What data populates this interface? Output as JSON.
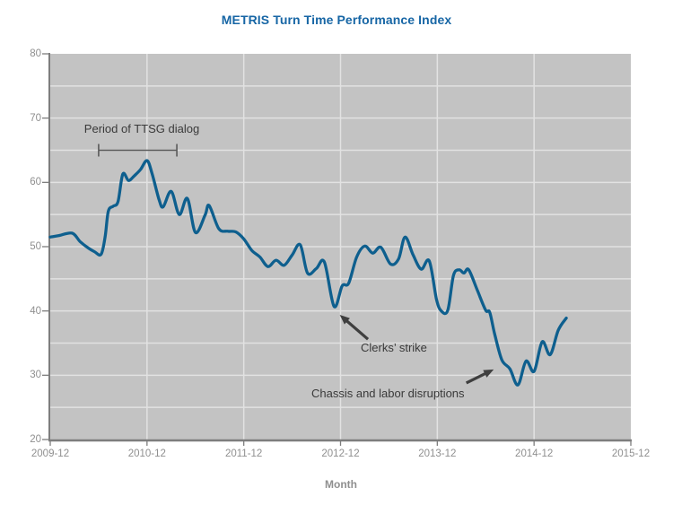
{
  "chart_data": {
    "type": "line",
    "title": "METRIS Turn Time Performance Index",
    "xlabel": "Month",
    "ylabel": "",
    "ylim": [
      20,
      80
    ],
    "x_range_months": [
      0,
      72
    ],
    "grid": true,
    "y_major_ticks": [
      20,
      30,
      40,
      50,
      60,
      70,
      80
    ],
    "y_grid_step": 5,
    "x_ticks": [
      {
        "month": 0,
        "label": "2009-12"
      },
      {
        "month": 12,
        "label": "2010-12"
      },
      {
        "month": 24,
        "label": "2011-12"
      },
      {
        "month": 36,
        "label": "2012-12"
      },
      {
        "month": 48,
        "label": "2013-12"
      },
      {
        "month": 60,
        "label": "2014-12"
      },
      {
        "month": 72,
        "label": "2015-12"
      }
    ],
    "series": [
      {
        "name": "METRIS Turn Time Performance Index",
        "points": [
          [
            0,
            51.5
          ],
          [
            1,
            51.7
          ],
          [
            2.7,
            52.1
          ],
          [
            3.7,
            50.8
          ],
          [
            4.7,
            49.8
          ],
          [
            5.5,
            49.2
          ],
          [
            6.3,
            48.8
          ],
          [
            6.8,
            51.5
          ],
          [
            7.2,
            55.5
          ],
          [
            7.8,
            56.3
          ],
          [
            8.4,
            57.0
          ],
          [
            9.0,
            61.3
          ],
          [
            9.7,
            60.3
          ],
          [
            10.4,
            61.0
          ],
          [
            11.2,
            62.0
          ],
          [
            12,
            63.4
          ],
          [
            12.6,
            61.5
          ],
          [
            13.5,
            57.3
          ],
          [
            14,
            56.2
          ],
          [
            15,
            58.6
          ],
          [
            16,
            55.0
          ],
          [
            17,
            57.5
          ],
          [
            18,
            52.2
          ],
          [
            19.2,
            54.9
          ],
          [
            19.7,
            56.4
          ],
          [
            20.9,
            52.8
          ],
          [
            22,
            52.4
          ],
          [
            23,
            52.3
          ],
          [
            24,
            51.2
          ],
          [
            25,
            49.4
          ],
          [
            26,
            48.4
          ],
          [
            27,
            46.9
          ],
          [
            28,
            47.9
          ],
          [
            29,
            47.1
          ],
          [
            30,
            48.7
          ],
          [
            31,
            50.3
          ],
          [
            31.9,
            45.9
          ],
          [
            33,
            46.6
          ],
          [
            34,
            47.6
          ],
          [
            35.2,
            40.7
          ],
          [
            36.2,
            43.9
          ],
          [
            37,
            44.3
          ],
          [
            38,
            48.4
          ],
          [
            39,
            50.1
          ],
          [
            40,
            49.0
          ],
          [
            41,
            49.9
          ],
          [
            42.2,
            47.3
          ],
          [
            43.2,
            48.1
          ],
          [
            44,
            51.5
          ],
          [
            45,
            48.7
          ],
          [
            46,
            46.5
          ],
          [
            47,
            47.8
          ],
          [
            47.9,
            41.8
          ],
          [
            48.5,
            40.0
          ],
          [
            49.3,
            40.1
          ],
          [
            50,
            45.5
          ],
          [
            50.7,
            46.4
          ],
          [
            51.3,
            45.9
          ],
          [
            51.9,
            46.4
          ],
          [
            53,
            43.1
          ],
          [
            54,
            40.1
          ],
          [
            54.5,
            39.8
          ],
          [
            55.1,
            36.5
          ],
          [
            56,
            32.4
          ],
          [
            57,
            31.0
          ],
          [
            58,
            28.5
          ],
          [
            59,
            32.2
          ],
          [
            60,
            30.6
          ],
          [
            61,
            35.2
          ],
          [
            62,
            33.2
          ],
          [
            63,
            37.0
          ],
          [
            64,
            38.9
          ]
        ]
      }
    ],
    "annotations": [
      {
        "id": "ttsg-dialog",
        "type": "bracket",
        "label": "Period of TTSG dialog",
        "x_from_month": 6.0,
        "x_to_month": 15.7,
        "value": 65.0
      },
      {
        "id": "clerks-strike",
        "type": "arrow",
        "label": "Clerks’ strike",
        "tail": [
          39.4,
          35.6
        ],
        "tip": [
          35.9,
          39.4
        ]
      },
      {
        "id": "chassis-labor",
        "type": "arrow",
        "label": "Chassis and labor disruptions",
        "tail": [
          51.6,
          28.8
        ],
        "tip": [
          55.0,
          30.9
        ]
      }
    ],
    "colors": {
      "line": "#0e5f8e",
      "title": "#1766a5",
      "plot_bg": "#c3c3c3",
      "grid": "#e2e2e2",
      "axis": "#7d7d7d",
      "tick_label": "#8f8f8f",
      "annotation_text": "#3a3a3a",
      "arrow": "#3f3f3f",
      "bracket": "#5a5a5a"
    }
  }
}
